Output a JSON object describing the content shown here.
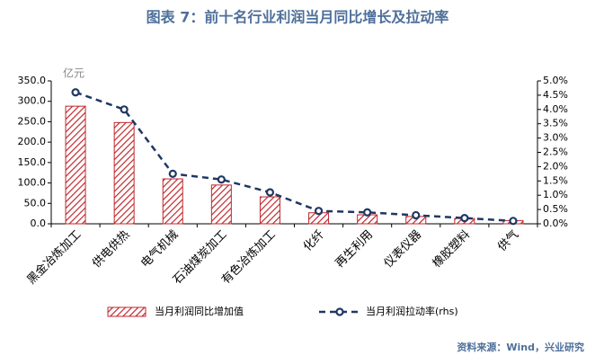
{
  "chart_data": {
    "type": "bar",
    "title": "图表 7：前十名行业利润当月同比增长及拉动率",
    "y_unit": "亿元",
    "source": "资料来源：Wind，兴业研究",
    "categories": [
      "黑金冶炼加工",
      "供电供热",
      "电气机械",
      "石油煤炭加工",
      "有色冶炼加工",
      "化纤",
      "再生利用",
      "仪表仪器",
      "橡胶塑料",
      "供气"
    ],
    "series": [
      {
        "name": "当月利润同比增加值",
        "type": "bar",
        "color": "#c0282d",
        "values": [
          288,
          248,
          110,
          95,
          66,
          27,
          22,
          18,
          13,
          8
        ]
      },
      {
        "name": "当月利润拉动率(rhs)",
        "type": "line",
        "axis": "y2",
        "color": "#1f3864",
        "values": [
          4.6,
          4.0,
          1.75,
          1.55,
          1.1,
          0.45,
          0.4,
          0.3,
          0.2,
          0.1
        ]
      }
    ],
    "ylim": [
      0,
      350
    ],
    "yticks": [
      {
        "value": 0,
        "label": "0.0"
      },
      {
        "value": 50,
        "label": "50.0"
      },
      {
        "value": 100,
        "label": "100.0"
      },
      {
        "value": 150,
        "label": "150.0"
      },
      {
        "value": 200,
        "label": "200.0"
      },
      {
        "value": 250,
        "label": "250.0"
      },
      {
        "value": 300,
        "label": "300.0"
      },
      {
        "value": 350,
        "label": "350.0"
      }
    ],
    "y2lim": [
      0,
      5
    ],
    "y2ticks": [
      {
        "value": 0,
        "label": "0.0%"
      },
      {
        "value": 0.5,
        "label": "0.5%"
      },
      {
        "value": 1,
        "label": "1.0%"
      },
      {
        "value": 1.5,
        "label": "1.5%"
      },
      {
        "value": 2,
        "label": "2.0%"
      },
      {
        "value": 2.5,
        "label": "2.5%"
      },
      {
        "value": 3,
        "label": "3.0%"
      },
      {
        "value": 3.5,
        "label": "3.5%"
      },
      {
        "value": 4,
        "label": "4.0%"
      },
      {
        "value": 4.5,
        "label": "4.5%"
      },
      {
        "value": 5,
        "label": "5.0%"
      }
    ]
  }
}
